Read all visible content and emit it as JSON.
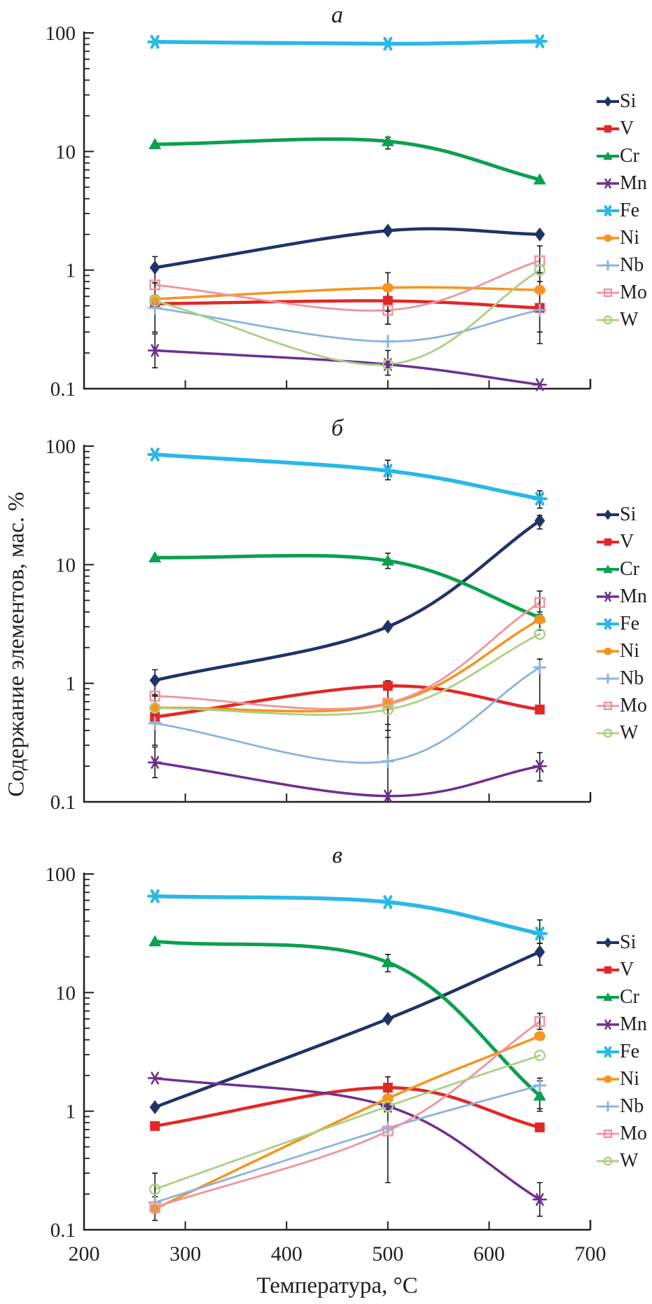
{
  "labels": {
    "ylabel": "Содержание элементов, мас. %",
    "xlabel": "Температура, °C"
  },
  "axes": {
    "x_ticks": [
      200,
      300,
      400,
      500,
      600,
      700
    ],
    "y_ticks": [
      100,
      10,
      1,
      0.1
    ],
    "x_range": [
      200,
      700
    ],
    "y_range": [
      0.1,
      100
    ],
    "y_scale": "log",
    "grid": false,
    "legend_position": "right"
  },
  "colors": {
    "Si": "#1f3368",
    "V": "#e32726",
    "Cr": "#0ba04f",
    "Mn": "#6e2f91",
    "Fe": "#29b8e8",
    "Ni": "#f7941e",
    "Nb": "#8bb3de",
    "Mo": "#f0949c",
    "W": "#a9d183",
    "axis": "#231f20",
    "error_bar": "#1a1a1a"
  },
  "chart_data": [
    {
      "type": "line",
      "id": "a",
      "title": "а",
      "x": [
        270,
        500,
        650
      ],
      "xlabel": "Температура, °C",
      "ylabel": "Содержание элементов, мас. %",
      "ylim": [
        0.1,
        100
      ],
      "yscale": "log",
      "series": [
        {
          "name": "Si",
          "color": "#1f3368",
          "marker": "diamond",
          "width": 4.5,
          "values": [
            1.05,
            2.15,
            2.0
          ],
          "err": [
            [
              0.78,
              1.3
            ],
            null,
            null
          ]
        },
        {
          "name": "V",
          "color": "#e32726",
          "marker": "square",
          "width": 4.5,
          "values": [
            0.52,
            0.55,
            0.48
          ],
          "err": [
            null,
            [
              0.35,
              0.75
            ],
            [
              0.3,
              0.65
            ]
          ]
        },
        {
          "name": "Cr",
          "color": "#0ba04f",
          "marker": "triangle",
          "width": 5,
          "values": [
            11.5,
            12.2,
            5.8
          ],
          "err": [
            null,
            [
              10.5,
              13.2
            ],
            null
          ]
        },
        {
          "name": "Mn",
          "color": "#6e2f91",
          "marker": "asterisk",
          "width": 3.5,
          "values": [
            0.21,
            0.16,
            0.108
          ],
          "err": [
            [
              0.15,
              0.29
            ],
            null,
            null
          ]
        },
        {
          "name": "Fe",
          "color": "#29b8e8",
          "marker": "asterisk-bold",
          "width": 5.5,
          "values": [
            84,
            81,
            85
          ],
          "err": [
            null,
            null,
            null
          ]
        },
        {
          "name": "Ni",
          "color": "#f7941e",
          "marker": "circle",
          "width": 3.5,
          "values": [
            0.57,
            0.71,
            0.68
          ],
          "err": [
            null,
            [
              0.45,
              0.95
            ],
            [
              0.45,
              0.95
            ]
          ]
        },
        {
          "name": "Nb",
          "color": "#8bb3de",
          "marker": "plus",
          "width": 2.8,
          "values": [
            0.48,
            0.25,
            0.46
          ],
          "err": [
            [
              0.3,
              0.78
            ],
            null,
            [
              0.24,
              0.7
            ]
          ]
        },
        {
          "name": "Mo",
          "color": "#f0949c",
          "marker": "open-square",
          "width": 2.8,
          "values": [
            0.75,
            0.46,
            1.2
          ],
          "err": [
            null,
            [
              0.35,
              0.6
            ],
            [
              0.8,
              1.6
            ]
          ]
        },
        {
          "name": "W",
          "color": "#a9d183",
          "marker": "open-circle",
          "width": 2.8,
          "values": [
            0.55,
            0.16,
            1.0
          ],
          "err": [
            null,
            [
              0.13,
              0.21
            ],
            null
          ]
        }
      ]
    },
    {
      "type": "line",
      "id": "b",
      "title": "б",
      "x": [
        270,
        500,
        650
      ],
      "xlabel": "Температура, °C",
      "ylabel": "Содержание элементов, мас. %",
      "ylim": [
        0.1,
        100
      ],
      "yscale": "log",
      "series": [
        {
          "name": "Si",
          "color": "#1f3368",
          "marker": "diamond",
          "width": 4.5,
          "values": [
            1.06,
            3.0,
            23.5
          ],
          "err": [
            [
              0.8,
              1.3
            ],
            null,
            [
              20,
              26
            ]
          ]
        },
        {
          "name": "V",
          "color": "#e32726",
          "marker": "square",
          "width": 4.5,
          "values": [
            0.52,
            0.95,
            0.6
          ],
          "err": [
            null,
            [
              0.4,
              1.05
            ],
            null
          ]
        },
        {
          "name": "Cr",
          "color": "#0ba04f",
          "marker": "triangle",
          "width": 5,
          "values": [
            11.5,
            10.8,
            3.6
          ],
          "err": [
            null,
            [
              9.3,
              12.5
            ],
            null
          ]
        },
        {
          "name": "Mn",
          "color": "#6e2f91",
          "marker": "asterisk",
          "width": 3.5,
          "values": [
            0.215,
            0.112,
            0.2
          ],
          "err": [
            [
              0.16,
              0.29
            ],
            null,
            [
              0.15,
              0.26
            ]
          ]
        },
        {
          "name": "Fe",
          "color": "#29b8e8",
          "marker": "asterisk-bold",
          "width": 5.5,
          "values": [
            85,
            62,
            36
          ],
          "err": [
            null,
            [
              52,
              76
            ],
            [
              30,
              42
            ]
          ]
        },
        {
          "name": "Ni",
          "color": "#f7941e",
          "marker": "circle",
          "width": 3.5,
          "values": [
            0.62,
            0.67,
            3.45
          ],
          "err": [
            null,
            null,
            [
              2.8,
              4.0
            ]
          ]
        },
        {
          "name": "Nb",
          "color": "#8bb3de",
          "marker": "plus",
          "width": 2.8,
          "values": [
            0.46,
            0.22,
            1.36
          ],
          "err": [
            [
              0.3,
              0.78
            ],
            [
              0.1,
              0.45
            ],
            [
              0.6,
              1.6
            ]
          ]
        },
        {
          "name": "Mo",
          "color": "#f0949c",
          "marker": "open-square",
          "width": 2.8,
          "values": [
            0.78,
            0.68,
            4.8
          ],
          "err": [
            null,
            null,
            [
              3.8,
              6.0
            ]
          ]
        },
        {
          "name": "W",
          "color": "#a9d183",
          "marker": "open-circle",
          "width": 2.8,
          "values": [
            0.62,
            0.6,
            2.6
          ],
          "err": [
            null,
            [
              0.35,
              1.0
            ],
            null
          ]
        }
      ]
    },
    {
      "type": "line",
      "id": "v",
      "title": "в",
      "x": [
        270,
        500,
        650
      ],
      "xlabel": "Температура, °C",
      "ylabel": "Содержание элементов, мас. %",
      "ylim": [
        0.1,
        100
      ],
      "yscale": "log",
      "series": [
        {
          "name": "Si",
          "color": "#1f3368",
          "marker": "diamond",
          "width": 4.5,
          "values": [
            1.08,
            6.0,
            22
          ],
          "err": [
            null,
            null,
            [
              17,
              26
            ]
          ]
        },
        {
          "name": "V",
          "color": "#e32726",
          "marker": "square",
          "width": 4.5,
          "values": [
            0.75,
            1.58,
            0.73
          ],
          "err": [
            null,
            [
              1.3,
              1.95
            ],
            null
          ]
        },
        {
          "name": "Cr",
          "color": "#0ba04f",
          "marker": "triangle",
          "width": 5,
          "values": [
            27,
            18,
            1.35
          ],
          "err": [
            null,
            [
              15,
              21
            ],
            [
              1.05,
              1.8
            ]
          ]
        },
        {
          "name": "Mn",
          "color": "#6e2f91",
          "marker": "asterisk",
          "width": 3.5,
          "values": [
            1.9,
            1.1,
            0.18
          ],
          "err": [
            null,
            null,
            [
              0.13,
              0.25
            ]
          ]
        },
        {
          "name": "Fe",
          "color": "#29b8e8",
          "marker": "asterisk-bold",
          "width": 5.5,
          "values": [
            65,
            58,
            31.5
          ],
          "err": [
            null,
            null,
            [
              26,
              41
            ]
          ]
        },
        {
          "name": "Ni",
          "color": "#f7941e",
          "marker": "circle",
          "width": 3.5,
          "values": [
            0.15,
            1.28,
            4.3
          ],
          "err": [
            [
              0.12,
              0.19
            ],
            null,
            null
          ]
        },
        {
          "name": "Nb",
          "color": "#8bb3de",
          "marker": "plus",
          "width": 2.8,
          "values": [
            0.17,
            0.72,
            1.65
          ],
          "err": [
            null,
            null,
            [
              1.0,
              1.9
            ]
          ]
        },
        {
          "name": "Mo",
          "color": "#f0949c",
          "marker": "open-square",
          "width": 2.8,
          "values": [
            0.155,
            0.68,
            5.7
          ],
          "err": [
            null,
            [
              0.25,
              1.3
            ],
            [
              4.9,
              6.7
            ]
          ]
        },
        {
          "name": "W",
          "color": "#a9d183",
          "marker": "open-circle",
          "width": 2.8,
          "values": [
            0.22,
            1.1,
            2.95
          ],
          "err": [
            [
              0.17,
              0.3
            ],
            null,
            null
          ]
        }
      ]
    }
  ]
}
